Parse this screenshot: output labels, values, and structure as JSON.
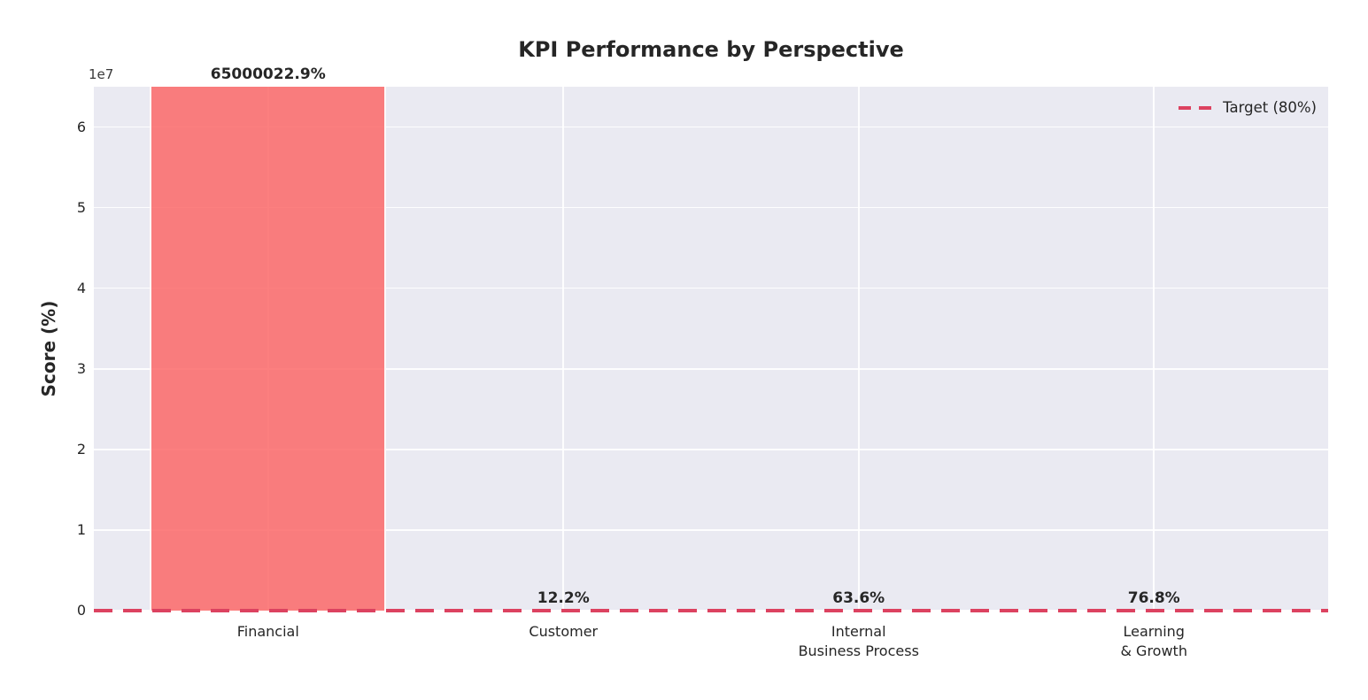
{
  "chart_data": {
    "type": "bar",
    "title": "KPI Performance by Perspective",
    "ylabel": "Score (%)",
    "xlabel": "",
    "y_offset_text": "1e7",
    "categories": [
      "Financial",
      "Customer",
      "Internal\nBusiness Process",
      "Learning\n& Growth"
    ],
    "values": [
      65000022.9,
      12.2,
      63.6,
      76.8
    ],
    "bar_labels": [
      "65000022.9%",
      "12.2%",
      "63.6%",
      "76.8%"
    ],
    "ylim": [
      0,
      65000000
    ],
    "ytick_values": [
      0,
      10000000,
      20000000,
      30000000,
      40000000,
      50000000,
      60000000
    ],
    "ytick_labels": [
      "0",
      "1",
      "2",
      "3",
      "4",
      "5",
      "6"
    ],
    "grid": true,
    "legend": {
      "label": "Target (80%)",
      "position": "upper right"
    },
    "target_line": {
      "value": 80,
      "style": "dashed"
    },
    "colors": {
      "bar_fill": "rgba(252,105,105,0.85)",
      "bar_edge": "#ffffff",
      "plot_bg": "#eaeaf2",
      "grid": "#ffffff",
      "target": "#dc4260",
      "text": "#262626",
      "background": "#ffffff"
    }
  }
}
